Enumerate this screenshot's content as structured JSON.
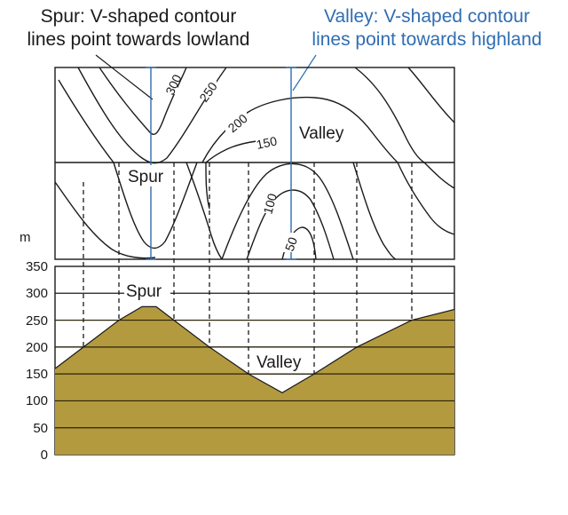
{
  "captions": {
    "spur": [
      "Spur: V-shaped contour",
      "lines point towards lowland"
    ],
    "valley": [
      "Valley: V-shaped contour",
      "lines point towards highland"
    ]
  },
  "map": {
    "contour_labels": [
      "300",
      "250",
      "200",
      "150",
      "100",
      "50"
    ],
    "spur_label": "Spur",
    "valley_label": "Valley"
  },
  "profile": {
    "axis_unit": "m",
    "y_ticks": [
      "350",
      "300",
      "250",
      "200",
      "150",
      "100",
      "50",
      "0"
    ],
    "y_range": [
      0,
      350
    ],
    "spur_label": "Spur",
    "valley_label": "Valley",
    "fill_color": "#b39a3e"
  }
}
